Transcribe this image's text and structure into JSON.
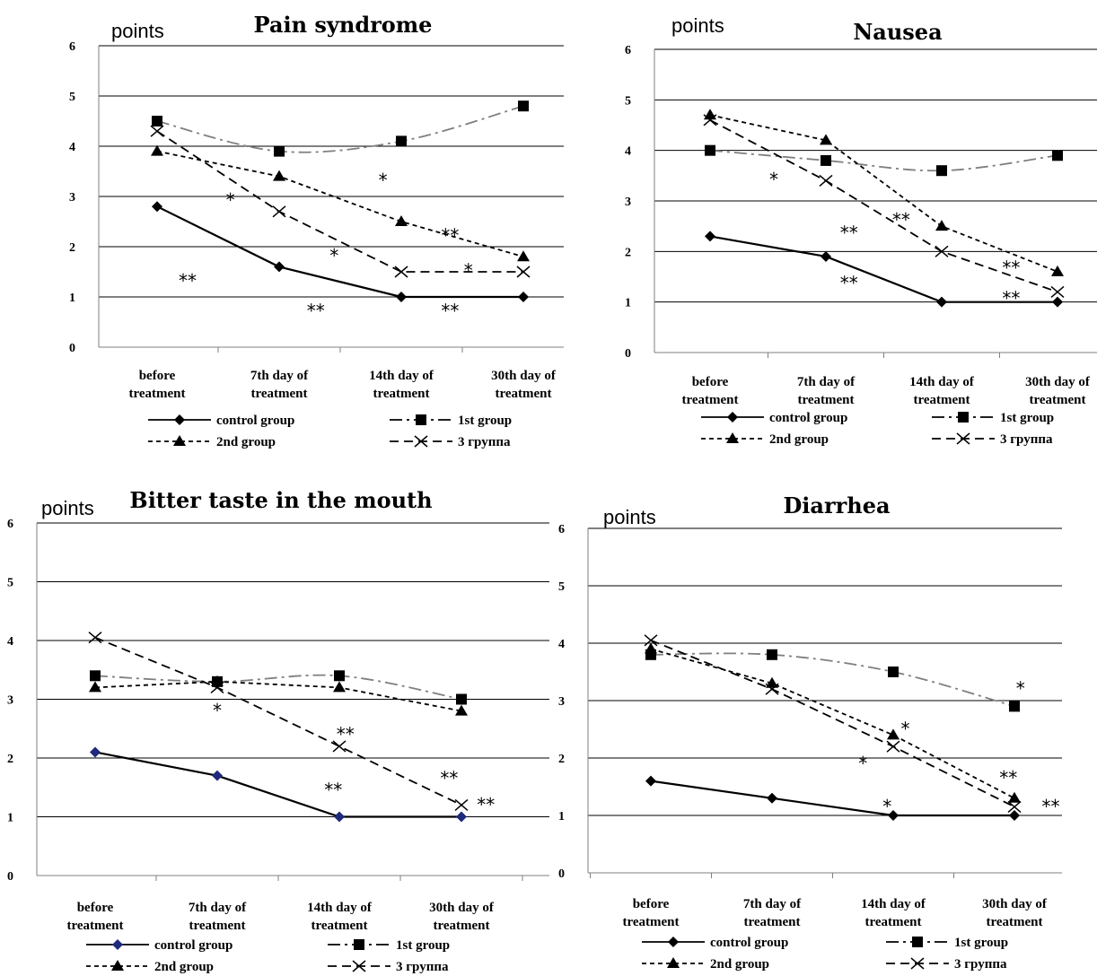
{
  "chart_data": [
    {
      "type": "line",
      "title": "Pain syndrome",
      "ylabel": "points",
      "ylim": [
        0,
        6
      ],
      "yticks": [
        "0",
        "1",
        "2",
        "3",
        "4",
        "5",
        "6"
      ],
      "categories": [
        "before treatment",
        "7th day of treatment",
        "14th day of treatment",
        "30th day of treatment"
      ],
      "grid": true,
      "legend_position": "bottom",
      "series": [
        {
          "name": "control group",
          "values": [
            2.8,
            1.6,
            1.0,
            1.0
          ],
          "color": "#000000",
          "style": "solid",
          "marker": "diamond"
        },
        {
          "name": "1st group",
          "values": [
            4.5,
            3.9,
            4.1,
            4.8
          ],
          "color": "#7f7f7f",
          "style": "longdash",
          "marker": "square"
        },
        {
          "name": "2nd group",
          "values": [
            3.9,
            3.4,
            2.5,
            1.8
          ],
          "color": "#000000",
          "style": "shortdash",
          "marker": "triangle"
        },
        {
          "name": "3 группа",
          "values": [
            4.3,
            2.7,
            1.5,
            1.5
          ],
          "color": "#000000",
          "style": "dash",
          "marker": "x"
        }
      ],
      "annotations": [
        {
          "text": "*",
          "x": 0.6,
          "y": 2.8
        },
        {
          "text": "**",
          "x": 0.25,
          "y": 1.2
        },
        {
          "text": "*",
          "x": 1.45,
          "y": 1.7
        },
        {
          "text": "**",
          "x": 1.3,
          "y": 0.6
        },
        {
          "text": "*",
          "x": 1.85,
          "y": 3.2
        },
        {
          "text": "**",
          "x": 2.4,
          "y": 2.1
        },
        {
          "text": "*",
          "x": 2.55,
          "y": 1.4
        },
        {
          "text": "**",
          "x": 2.4,
          "y": 0.6
        }
      ]
    },
    {
      "type": "line",
      "title": "Nausea",
      "ylabel": "points",
      "ylim": [
        0,
        6
      ],
      "yticks": [
        "0",
        "1",
        "2",
        "3",
        "4",
        "5",
        "6"
      ],
      "categories": [
        "before treatment",
        "7th day of treatment",
        "14th day of treatment",
        "30th day of treatment"
      ],
      "grid": true,
      "legend_position": "bottom",
      "series": [
        {
          "name": "control group",
          "values": [
            2.3,
            1.9,
            1.0,
            1.0
          ],
          "color": "#000000",
          "style": "solid",
          "marker": "diamond"
        },
        {
          "name": "1st group",
          "values": [
            4.0,
            3.8,
            3.6,
            3.9
          ],
          "color": "#7f7f7f",
          "style": "longdash",
          "marker": "square"
        },
        {
          "name": "2nd group",
          "values": [
            4.7,
            4.2,
            2.5,
            1.6
          ],
          "color": "#000000",
          "style": "shortdash",
          "marker": "triangle"
        },
        {
          "name": "3 группа",
          "values": [
            4.6,
            3.4,
            2.0,
            1.2
          ],
          "color": "#000000",
          "style": "dash",
          "marker": "x"
        }
      ],
      "annotations": [
        {
          "text": "*",
          "x": 0.55,
          "y": 3.3
        },
        {
          "text": "**",
          "x": 1.2,
          "y": 2.25
        },
        {
          "text": "**",
          "x": 1.65,
          "y": 2.5
        },
        {
          "text": "**",
          "x": 1.2,
          "y": 1.25
        },
        {
          "text": "**",
          "x": 2.6,
          "y": 1.55
        },
        {
          "text": "**",
          "x": 2.6,
          "y": 0.95
        }
      ]
    },
    {
      "type": "line",
      "title": "Bitter taste in the mouth",
      "ylabel": "points",
      "ylim": [
        0,
        6
      ],
      "yticks": [
        "0",
        "1",
        "2",
        "3",
        "4",
        "5",
        "6"
      ],
      "categories": [
        "before treatment",
        "7th day of treatment",
        "14th day of treatment",
        "30th day of treatment"
      ],
      "grid": true,
      "legend_position": "bottom",
      "series": [
        {
          "name": "control group",
          "values": [
            2.1,
            1.7,
            1.0,
            1.0
          ],
          "color": "#000000",
          "style": "solid",
          "marker": "diamond",
          "marker_color": "#1f2a7a"
        },
        {
          "name": "1st group",
          "values": [
            3.4,
            3.3,
            3.4,
            3.0
          ],
          "color": "#7f7f7f",
          "style": "longdash",
          "marker": "square"
        },
        {
          "name": "2nd group",
          "values": [
            3.2,
            3.3,
            3.2,
            2.8
          ],
          "color": "#000000",
          "style": "shortdash",
          "marker": "triangle"
        },
        {
          "name": "3 группа",
          "values": [
            4.05,
            3.2,
            2.2,
            1.2
          ],
          "color": "#000000",
          "style": "dash",
          "marker": "x"
        }
      ],
      "annotations": [
        {
          "text": "*",
          "x": 1.0,
          "y": 2.7
        },
        {
          "text": "**",
          "x": 2.05,
          "y": 2.3
        },
        {
          "text": "**",
          "x": 1.95,
          "y": 1.35
        },
        {
          "text": "**",
          "x": 2.9,
          "y": 1.55
        },
        {
          "text": "**",
          "x": 3.2,
          "y": 1.1
        }
      ]
    },
    {
      "type": "line",
      "title": "Diarrhea",
      "ylabel": "points",
      "ylim": [
        0,
        6
      ],
      "yticks": [
        "0",
        "1",
        "2",
        "3",
        "4",
        "5",
        "6"
      ],
      "categories": [
        "before treatment",
        "7th day of treatment",
        "14th day of treatment",
        "30th day of treatment"
      ],
      "grid": true,
      "legend_position": "bottom",
      "series": [
        {
          "name": "control group",
          "values": [
            1.6,
            1.3,
            1.0,
            1.0
          ],
          "color": "#000000",
          "style": "solid",
          "marker": "diamond"
        },
        {
          "name": "1st group",
          "values": [
            3.8,
            3.8,
            3.5,
            2.9
          ],
          "color": "#7f7f7f",
          "style": "longdash",
          "marker": "square"
        },
        {
          "name": "2nd group",
          "values": [
            3.9,
            3.3,
            2.4,
            1.3
          ],
          "color": "#000000",
          "style": "shortdash",
          "marker": "triangle"
        },
        {
          "name": "3 группа",
          "values": [
            4.05,
            3.2,
            2.2,
            1.15
          ],
          "color": "#000000",
          "style": "dash",
          "marker": "x"
        }
      ],
      "annotations": [
        {
          "text": "*",
          "x": 3.05,
          "y": 3.1
        },
        {
          "text": "*",
          "x": 2.1,
          "y": 2.4
        },
        {
          "text": "*",
          "x": 1.75,
          "y": 1.8
        },
        {
          "text": "**",
          "x": 2.95,
          "y": 1.55
        },
        {
          "text": "*",
          "x": 1.95,
          "y": 1.05
        },
        {
          "text": "**",
          "x": 3.3,
          "y": 1.05
        }
      ]
    }
  ]
}
